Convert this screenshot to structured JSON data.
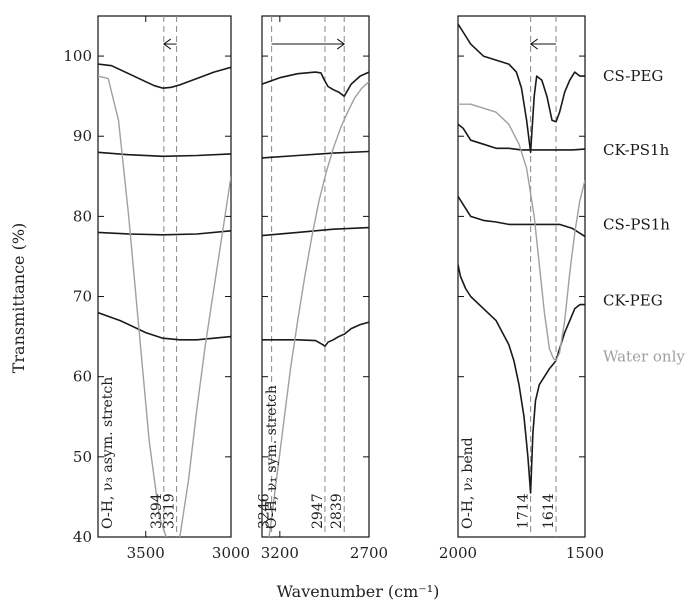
{
  "chart_data": {
    "type": "line",
    "xlabel": "Wavenumber (cm⁻¹)",
    "ylabel": "Transmittance (%)",
    "ylim": [
      40,
      105
    ],
    "yticks": [
      40,
      50,
      60,
      70,
      80,
      90,
      100
    ],
    "series_colors": {
      "sample": "#1a1a1a",
      "water": "#a0a0a0"
    },
    "series_labels": [
      {
        "name": "CS-PEG",
        "color": "#1a1a1a"
      },
      {
        "name": "CK-PS1h",
        "color": "#1a1a1a"
      },
      {
        "name": "CS-PS1h",
        "color": "#1a1a1a"
      },
      {
        "name": "CK-PEG",
        "color": "#1a1a1a"
      },
      {
        "name": "Water only",
        "color": "#a0a0a0"
      }
    ],
    "panels": [
      {
        "id": "oh-asym",
        "xlim": [
          3780,
          3000
        ],
        "xticks": [
          3500,
          3000
        ],
        "xtick_labels": [
          "3500",
          "3000"
        ],
        "band_label": "O-H, ν₃ asym. stretch",
        "markers": [
          {
            "x": 3394,
            "label": "3394"
          },
          {
            "x": 3319,
            "label": "3319"
          }
        ],
        "arrow": {
          "from": 3319,
          "to": 3394,
          "y": 101.5
        },
        "series": [
          {
            "name": "CS-PEG",
            "x": [
              3780,
              3700,
              3600,
              3500,
              3450,
              3400,
              3394,
              3350,
              3300,
              3200,
              3100,
              3000
            ],
            "y": [
              99.0,
              98.8,
              97.8,
              96.8,
              96.3,
              96.0,
              96.0,
              96.1,
              96.4,
              97.2,
              98.0,
              98.6
            ]
          },
          {
            "name": "CK-PS1h",
            "x": [
              3780,
              3600,
              3400,
              3200,
              3000
            ],
            "y": [
              88.0,
              87.7,
              87.5,
              87.6,
              87.8
            ]
          },
          {
            "name": "CS-PS1h",
            "x": [
              3780,
              3600,
              3400,
              3200,
              3000
            ],
            "y": [
              78.0,
              77.8,
              77.7,
              77.8,
              78.2
            ]
          },
          {
            "name": "CK-PEG",
            "x": [
              3780,
              3650,
              3500,
              3400,
              3300,
              3200,
              3100,
              3000
            ],
            "y": [
              68.0,
              67.0,
              65.5,
              64.8,
              64.6,
              64.6,
              64.8,
              65.0
            ]
          },
          {
            "name": "Water only",
            "x": [
              3780,
              3720,
              3660,
              3600,
              3540,
              3480,
              3420,
              3380,
              3340,
              3300,
              3250,
              3200,
              3150,
              3100,
              3050,
              3000
            ],
            "y": [
              97.5,
              97.2,
              92.0,
              80.0,
              66.0,
              52.0,
              42.5,
              40.0,
              38.5,
              40.0,
              47.0,
              56.0,
              64.0,
              71.0,
              78.0,
              85.0
            ]
          }
        ]
      },
      {
        "id": "oh-sym",
        "xlim": [
          3300,
          2700
        ],
        "xticks": [
          3200,
          2700
        ],
        "xtick_labels": [
          "3200",
          "2700"
        ],
        "band_label": "O-H, ν₁ sym. stretch",
        "markers": [
          {
            "x": 3246,
            "label": "3246"
          },
          {
            "x": 2947,
            "label": "2947"
          },
          {
            "x": 2839,
            "label": "2839"
          }
        ],
        "arrow": {
          "from": 3246,
          "to": 2839,
          "y": 101.5
        },
        "series": [
          {
            "name": "CS-PEG",
            "x": [
              3300,
              3200,
              3100,
              3000,
              2970,
              2950,
              2930,
              2900,
              2870,
              2839,
              2800,
              2750,
              2700
            ],
            "y": [
              96.5,
              97.3,
              97.8,
              98.0,
              97.9,
              97.0,
              96.2,
              95.8,
              95.5,
              95.0,
              96.5,
              97.5,
              98.0
            ]
          },
          {
            "name": "CK-PS1h",
            "x": [
              3300,
              3100,
              2900,
              2700
            ],
            "y": [
              87.3,
              87.6,
              87.9,
              88.1
            ]
          },
          {
            "name": "CS-PS1h",
            "x": [
              3300,
              3100,
              2900,
              2700
            ],
            "y": [
              77.6,
              78.0,
              78.4,
              78.6
            ]
          },
          {
            "name": "CK-PEG",
            "x": [
              3300,
              3100,
              3000,
              2960,
              2947,
              2930,
              2900,
              2870,
              2839,
              2800,
              2750,
              2700
            ],
            "y": [
              64.6,
              64.6,
              64.5,
              64.0,
              63.8,
              64.3,
              64.6,
              65.0,
              65.3,
              66.0,
              66.5,
              66.8
            ]
          },
          {
            "name": "Water only",
            "x": [
              3300,
              3260,
              3220,
              3180,
              3140,
              3100,
              3060,
              3020,
              2980,
              2940,
              2900,
              2860,
              2820,
              2780,
              2740,
              2700
            ],
            "y": [
              34.0,
              40.0,
              47.0,
              54.0,
              61.0,
              67.0,
              72.5,
              77.5,
              82.0,
              85.5,
              88.5,
              91.0,
              93.0,
              94.8,
              96.0,
              96.8
            ]
          }
        ]
      },
      {
        "id": "oh-bend",
        "xlim": [
          2000,
          1500
        ],
        "xticks": [
          2000,
          1500
        ],
        "xtick_labels": [
          "2000",
          "1500"
        ],
        "band_label": "O-H, ν₂ bend",
        "markers": [
          {
            "x": 1714,
            "label": "1714"
          },
          {
            "x": 1614,
            "label": "1614"
          }
        ],
        "arrow": {
          "from": 1614,
          "to": 1714,
          "y": 101.5
        },
        "series": [
          {
            "name": "CS-PEG",
            "x": [
              2000,
              1980,
              1950,
              1900,
              1850,
              1800,
              1770,
              1750,
              1730,
              1714,
              1700,
              1690,
              1670,
              1650,
              1630,
              1614,
              1600,
              1580,
              1560,
              1540,
              1520,
              1500
            ],
            "y": [
              104.0,
              103.0,
              101.5,
              100.0,
              99.5,
              99.0,
              98.0,
              96.0,
              92.0,
              88.0,
              95.0,
              97.5,
              97.0,
              95.0,
              92.0,
              91.8,
              93.0,
              95.5,
              97.0,
              98.0,
              97.5,
              97.5
            ]
          },
          {
            "name": "CK-PS1h",
            "x": [
              2000,
              1980,
              1950,
              1900,
              1850,
              1800,
              1750,
              1700,
              1650,
              1600,
              1550,
              1500
            ],
            "y": [
              91.5,
              91.0,
              89.5,
              89.0,
              88.5,
              88.5,
              88.3,
              88.3,
              88.3,
              88.3,
              88.3,
              88.4
            ]
          },
          {
            "name": "CS-PS1h",
            "x": [
              2000,
              1980,
              1950,
              1900,
              1850,
              1800,
              1750,
              1700,
              1650,
              1600,
              1550,
              1500
            ],
            "y": [
              82.5,
              81.5,
              80.0,
              79.5,
              79.3,
              79.0,
              79.0,
              79.0,
              79.0,
              79.0,
              78.5,
              77.5
            ]
          },
          {
            "name": "CK-PEG",
            "x": [
              2000,
              1990,
              1970,
              1950,
              1900,
              1850,
              1800,
              1780,
              1760,
              1740,
              1725,
              1714,
              1705,
              1695,
              1680,
              1660,
              1640,
              1614,
              1600,
              1580,
              1560,
              1540,
              1520,
              1500
            ],
            "y": [
              74.0,
              72.5,
              71.0,
              70.0,
              68.5,
              67.0,
              64.0,
              62.0,
              59.0,
              55.0,
              50.0,
              45.5,
              53.0,
              57.0,
              59.0,
              60.0,
              61.0,
              62.0,
              63.5,
              65.5,
              67.0,
              68.5,
              69.0,
              69.0
            ]
          },
          {
            "name": "Water only",
            "x": [
              2000,
              1950,
              1900,
              1850,
              1800,
              1760,
              1730,
              1700,
              1680,
              1660,
              1640,
              1625,
              1614,
              1600,
              1580,
              1560,
              1540,
              1520,
              1500
            ],
            "y": [
              94.0,
              94.0,
              93.5,
              93.0,
              91.5,
              89.0,
              86.0,
              80.0,
              74.0,
              68.0,
              63.5,
              62.3,
              62.0,
              63.0,
              67.0,
              73.0,
              78.0,
              82.0,
              84.5
            ]
          }
        ]
      }
    ]
  }
}
